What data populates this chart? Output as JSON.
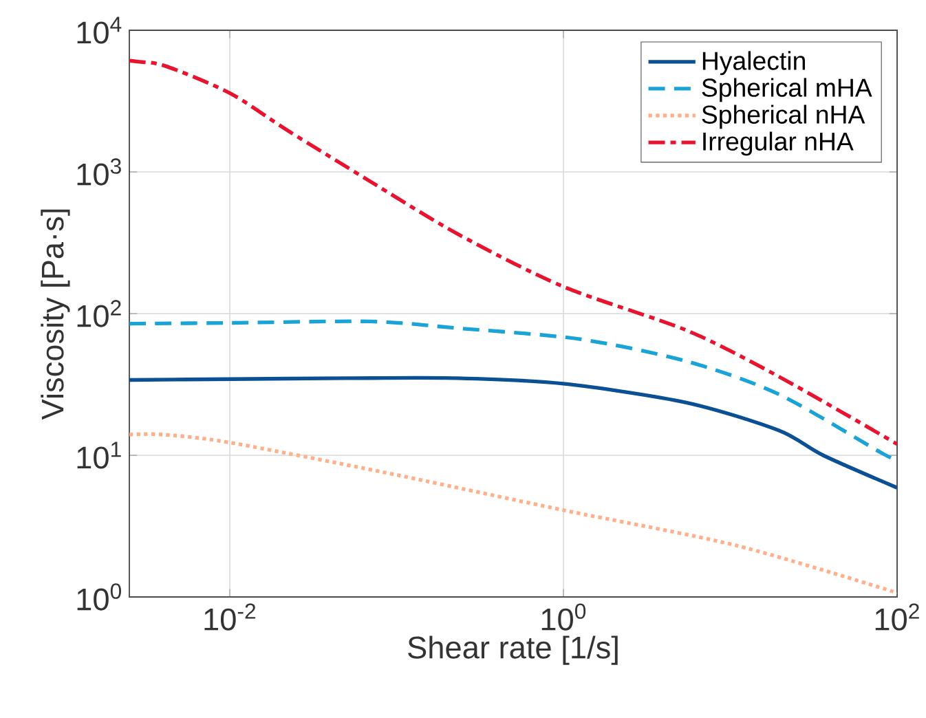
{
  "chart_data": {
    "type": "line",
    "xlabel": "Shear rate [1/s]",
    "ylabel": "Viscosity [Pa·s]",
    "log": "xy",
    "grid": true,
    "legend": "top right",
    "marker": "none",
    "xlim": [
      0.0025,
      100
    ],
    "ylim": [
      1,
      10000
    ],
    "xticks": [
      {
        "value": 0.01,
        "label": "10$^{-2}$"
      },
      {
        "value": 1,
        "label": "10$^{0}$"
      },
      {
        "value": 100,
        "label": "10$^{2}$"
      }
    ],
    "yticks": [
      {
        "value": 1,
        "label": "10$^{0}$"
      },
      {
        "value": 10,
        "label": "10$^{1}$"
      },
      {
        "value": 100,
        "label": "10$^{2}$"
      },
      {
        "value": 1000,
        "label": "10$^{3}$"
      },
      {
        "value": 10000,
        "label": "10$^{4}$"
      }
    ],
    "series": [
      {
        "name": "Hyalectin",
        "color": "#0b4f94",
        "line_style": "solid",
        "x": [
          0.0025,
          0.01,
          0.05,
          0.23,
          1,
          5.5,
          19.5,
          36,
          100
        ],
        "values": [
          34,
          34.5,
          35,
          35,
          32,
          23.5,
          15,
          10,
          5.9
        ]
      },
      {
        "name": "Spherical mHA",
        "color": "#1aa3d6",
        "line_style": "dashed",
        "x": [
          0.0025,
          0.01,
          0.07,
          0.23,
          1.26,
          5.5,
          19.5,
          83,
          100
        ],
        "values": [
          85,
          86,
          88,
          79,
          66,
          46,
          27,
          10.2,
          9.5
        ]
      },
      {
        "name": "Spherical nHA",
        "color": "#ffb08a",
        "line_style": "dotted",
        "x": [
          0.0025,
          0.004,
          0.01,
          0.083,
          1,
          11,
          100
        ],
        "values": [
          14,
          14,
          12.3,
          7.6,
          4.1,
          2.3,
          1.07
        ]
      },
      {
        "name": "Irregular nHA",
        "color": "#e8132f",
        "line_style": "dashdot",
        "x": [
          0.0025,
          0.0028,
          0.0041,
          0.01,
          0.0224,
          0.066,
          0.234,
          1,
          5.5,
          19.5,
          100
        ],
        "values": [
          6100,
          6000,
          5600,
          3600,
          1950,
          890,
          363,
          155,
          76,
          36,
          12
        ]
      }
    ]
  }
}
